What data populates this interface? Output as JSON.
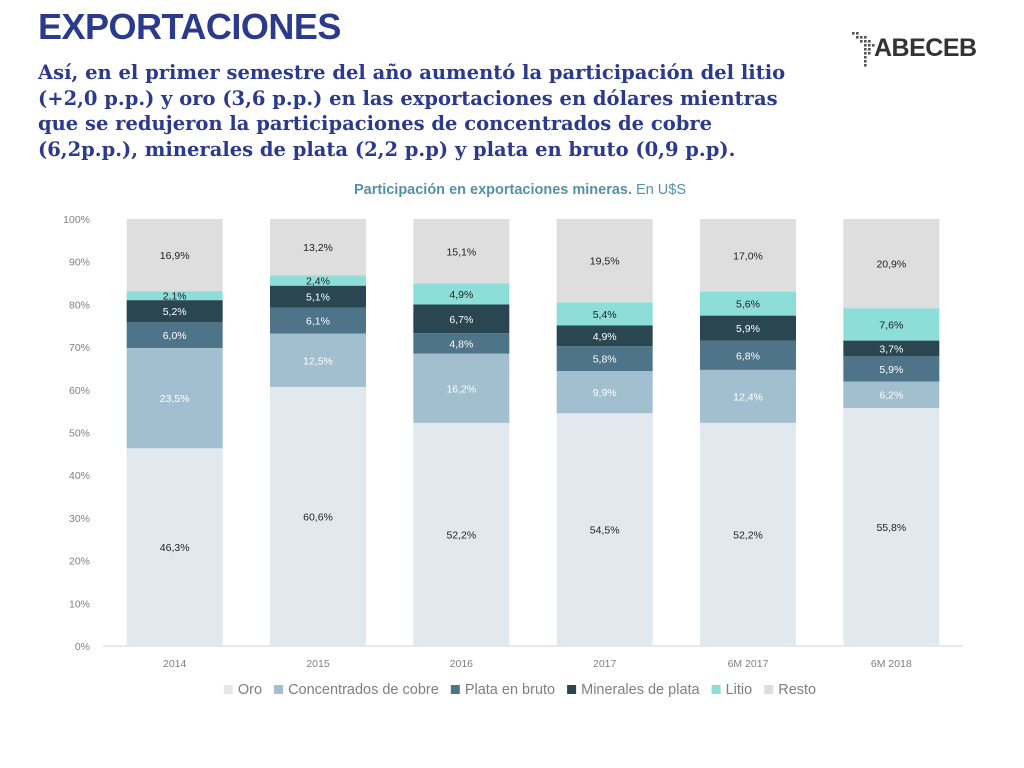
{
  "header": {
    "title": "EXPORTACIONES",
    "subtitle_lines": [
      "Así, en el primer semestre del año aumentó la participación del litio",
      "(+2,0 p.p.)  y oro (3,6 p.p.) en las exportaciones en dólares mientras",
      "que se redujeron la participaciones de concentrados de cobre",
      "(6,2p.p.), minerales de plata (2,2 p.p) y plata en bruto (0,9 p.p)."
    ]
  },
  "logo": {
    "text": "ABECEB",
    "icon": "south-america-dots-icon"
  },
  "chart_data": {
    "type": "bar",
    "stacked": true,
    "percent_stacked": true,
    "title": "Participación en exportaciones mineras.",
    "title_suffix": "En U$S",
    "categories": [
      "2014",
      "2015",
      "2016",
      "2017",
      "6M 2017",
      "6M 2018"
    ],
    "ylim": [
      0,
      100
    ],
    "yticks": [
      "0%",
      "10%",
      "20%",
      "30%",
      "40%",
      "50%",
      "60%",
      "70%",
      "80%",
      "90%",
      "100%"
    ],
    "grid": false,
    "legend_position": "bottom",
    "series": [
      {
        "name": "Oro",
        "color": "#e1e9ef",
        "label_color": "#222222",
        "values": [
          46.3,
          60.6,
          52.2,
          54.5,
          52.2,
          55.8
        ],
        "labels": [
          "46,3%",
          "60,6%",
          "52,2%",
          "54,5%",
          "52,2%",
          "55,8%"
        ]
      },
      {
        "name": "Concentrados de cobre",
        "color": "#a2bfcf",
        "label_color": "#ffffff",
        "values": [
          23.5,
          12.5,
          16.2,
          9.9,
          12.4,
          6.2
        ],
        "labels": [
          "23,5%",
          "12,5%",
          "16,2%",
          "9,9%",
          "12,4%",
          "6,2%"
        ]
      },
      {
        "name": "Plata en bruto",
        "color": "#4d7488",
        "label_color": "#ffffff",
        "values": [
          6.0,
          6.1,
          4.8,
          5.8,
          6.8,
          5.9
        ],
        "labels": [
          "6,0%",
          "6,1%",
          "4,8%",
          "5,8%",
          "6,8%",
          "5,9%"
        ]
      },
      {
        "name": "Minerales de plata",
        "color": "#2a4650",
        "label_color": "#ffffff",
        "values": [
          5.2,
          5.1,
          6.7,
          4.9,
          5.9,
          3.7
        ],
        "labels": [
          "5,2%",
          "5,1%",
          "6,7%",
          "4,9%",
          "5,9%",
          "3,7%"
        ]
      },
      {
        "name": "Litio",
        "color": "#8dddd8",
        "label_color": "#222222",
        "values": [
          2.1,
          2.4,
          4.9,
          5.4,
          5.6,
          7.6
        ],
        "labels": [
          "2,1%",
          "2,4%",
          "4,9%",
          "5,4%",
          "5,6%",
          "7,6%"
        ]
      },
      {
        "name": "Resto",
        "color": "#dedede",
        "label_color": "#222222",
        "values": [
          16.9,
          13.2,
          15.1,
          19.5,
          17.0,
          20.9
        ],
        "labels": [
          "16,9%",
          "13,2%",
          "15,1%",
          "19,5%",
          "17,0%",
          "20,9%"
        ]
      }
    ]
  }
}
